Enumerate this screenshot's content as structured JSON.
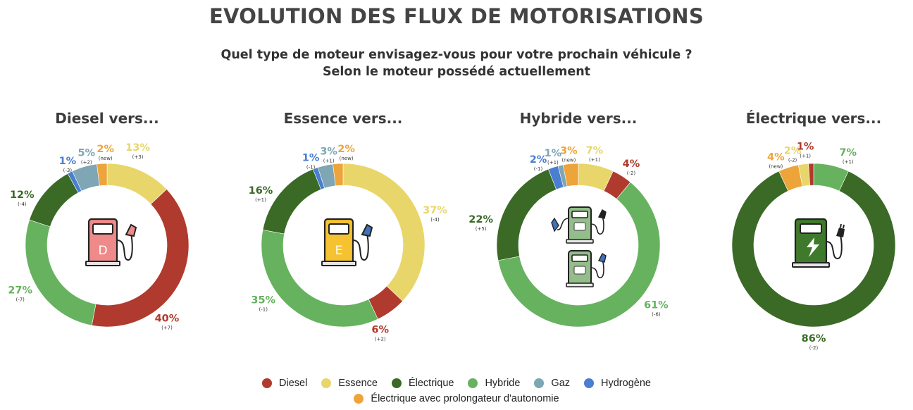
{
  "title": "EVOLUTION DES FLUX DE MOTORISATIONS",
  "subtitle_line1": "Quel type de moteur envisagez-vous pour votre prochain véhicule ?",
  "subtitle_line2": "Selon le moteur possédé actuellement",
  "colors": {
    "Diesel": "#b03a2e",
    "Essence": "#e8d66a",
    "Électrique": "#3a6a26",
    "Hybride": "#66b25f",
    "Gaz": "#7ea6b4",
    "Hydrogène": "#4a7ed0",
    "Électrique avec prolongateur d'autonomie": "#eda43a"
  },
  "legend": {
    "row1": [
      "Diesel",
      "Essence",
      "Électrique",
      "Hybride",
      "Gaz",
      "Hydrogène"
    ],
    "row2": [
      "Électrique avec prolongateur d'autonomie"
    ]
  },
  "chart_data": [
    {
      "type": "pie",
      "title": "Diesel vers...",
      "icon": "fuel-pump-diesel-icon",
      "icon_letter": "D",
      "slices": [
        {
          "name": "Essence",
          "value": 13,
          "label": "13%",
          "change": "(+3)"
        },
        {
          "name": "Diesel",
          "value": 40,
          "label": "40%",
          "change": "(+7)"
        },
        {
          "name": "Hybride",
          "value": 27,
          "label": "27%",
          "change": "(-7)"
        },
        {
          "name": "Électrique",
          "value": 12,
          "label": "12%",
          "change": "(-4)"
        },
        {
          "name": "Hydrogène",
          "value": 1,
          "label": "1%",
          "change": "(-3)"
        },
        {
          "name": "Gaz",
          "value": 5,
          "label": "5%",
          "change": "(+2)"
        },
        {
          "name": "Électrique avec prolongateur d'autonomie",
          "value": 2,
          "label": "2%",
          "change": "(new)"
        }
      ]
    },
    {
      "type": "pie",
      "title": "Essence vers...",
      "icon": "fuel-pump-essence-icon",
      "icon_letter": "E",
      "slices": [
        {
          "name": "Essence",
          "value": 37,
          "label": "37%",
          "change": "(-4)"
        },
        {
          "name": "Diesel",
          "value": 6,
          "label": "6%",
          "change": "(+2)"
        },
        {
          "name": "Hybride",
          "value": 35,
          "label": "35%",
          "change": "(-1)"
        },
        {
          "name": "Électrique",
          "value": 16,
          "label": "16%",
          "change": "(+1)"
        },
        {
          "name": "Hydrogène",
          "value": 1,
          "label": "1%",
          "change": "(-1)"
        },
        {
          "name": "Gaz",
          "value": 3,
          "label": "3%",
          "change": "(+1)"
        },
        {
          "name": "Électrique avec prolongateur d'autonomie",
          "value": 2,
          "label": "2%",
          "change": "(new)"
        }
      ]
    },
    {
      "type": "pie",
      "title": "Hybride vers...",
      "icon": "hybrid-charger-icon",
      "slices": [
        {
          "name": "Essence",
          "value": 7,
          "label": "7%",
          "change": "(+1)"
        },
        {
          "name": "Diesel",
          "value": 4,
          "label": "4%",
          "change": "(-2)"
        },
        {
          "name": "Hybride",
          "value": 61,
          "label": "61%",
          "change": "(-6)"
        },
        {
          "name": "Électrique",
          "value": 22,
          "label": "22%",
          "change": "(+5)"
        },
        {
          "name": "Hydrogène",
          "value": 2,
          "label": "2%",
          "change": "(-1)"
        },
        {
          "name": "Gaz",
          "value": 1,
          "label": "1%",
          "change": "(+1)"
        },
        {
          "name": "Électrique avec prolongateur d'autonomie",
          "value": 3,
          "label": "3%",
          "change": "(new)"
        }
      ]
    },
    {
      "type": "pie",
      "title": "Électrique vers...",
      "icon": "ev-charger-icon",
      "slices": [
        {
          "name": "Hybride",
          "value": 7,
          "label": "7%",
          "change": "(+1)"
        },
        {
          "name": "Électrique",
          "value": 86,
          "label": "86%",
          "change": "(-2)"
        },
        {
          "name": "Électrique avec prolongateur d'autonomie",
          "value": 4,
          "label": "4%",
          "change": "(new)"
        },
        {
          "name": "Essence",
          "value": 2,
          "label": "2%",
          "change": "(-2)"
        },
        {
          "name": "Diesel",
          "value": 1,
          "label": "1%",
          "change": "(+1)"
        }
      ]
    }
  ]
}
